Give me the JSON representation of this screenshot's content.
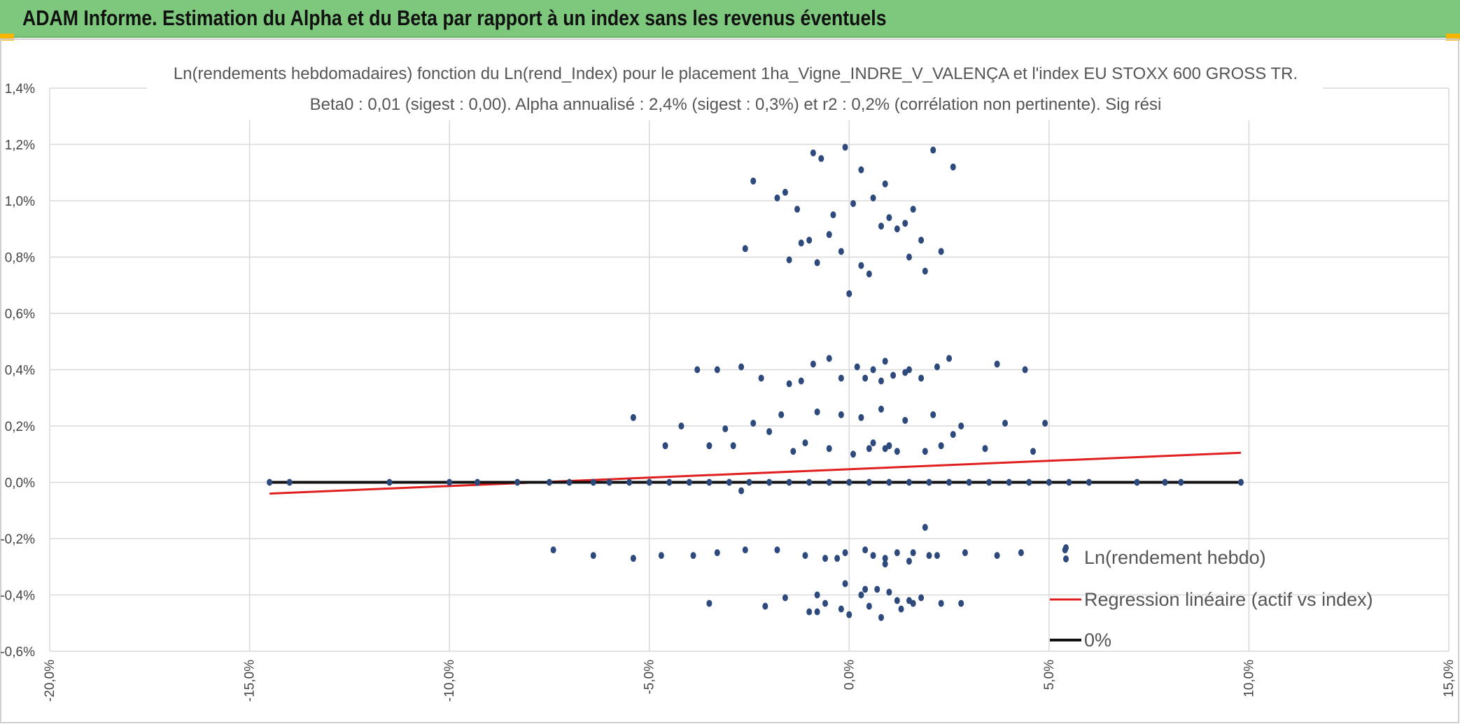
{
  "header": {
    "title": "ADAM Informe. Estimation du Alpha et du Beta par rapport à un index sans les revenus éventuels",
    "bg_color": "#7dc87d",
    "corner_color": "#f4b400"
  },
  "chart_data": {
    "type": "scatter",
    "title": "Ln(rendements hebdomadaires) fonction du Ln(rend_Index) pour le placement 1ha_Vigne_INDRE_V_VALENÇA et l'index EU STOXX 600 GROSS TR.",
    "subtitle": "Beta0 : 0,01 (sigest : 0,00). Alpha annualisé : 2,4% (sigest : 0,3%) et r2 : 0,2% (corrélation non pertinente). Sig rési",
    "xlabel": "",
    "ylabel": "",
    "xlim": [
      -20,
      15
    ],
    "ylim": [
      -0.6,
      1.4
    ],
    "x_ticks": [
      -20,
      -15,
      -10,
      -5,
      0,
      5,
      10,
      15
    ],
    "y_ticks": [
      -0.6,
      -0.4,
      -0.2,
      0.0,
      0.2,
      0.4,
      0.6,
      0.8,
      1.0,
      1.2,
      1.4
    ],
    "x_tick_labels": [
      "-20,0%",
      "-15,0%",
      "-10,0%",
      "-5,0%",
      "0,0%",
      "5,0%",
      "10,0%",
      "15,0%"
    ],
    "y_tick_labels": [
      "-0,6%",
      "-0,4%",
      "-0,2%",
      "0,0%",
      "0,2%",
      "0,4%",
      "0,6%",
      "0,8%",
      "1,0%",
      "1,2%",
      "1,4%"
    ],
    "grid": true,
    "legend_position": "bottom-right",
    "series": [
      {
        "name": "Ln(rendement hebdo)",
        "kind": "points",
        "color": "#2e4a7d",
        "x": [
          -14.5,
          -14,
          -11.5,
          -10,
          -9.3,
          -8.3,
          -7.5,
          -7,
          -6.4,
          -6,
          -5.5,
          -5,
          -4.5,
          -4,
          -3.5,
          -3,
          -2.5,
          -2,
          -1.5,
          -1,
          -0.5,
          0,
          0.5,
          1,
          1.5,
          2,
          2.5,
          3,
          3.5,
          4,
          4.5,
          5,
          5.5,
          6,
          7.2,
          7.9,
          8.3,
          9.8,
          -2.4,
          -1.6,
          -1.3,
          -0.9,
          -0.7,
          -0.1,
          0.3,
          -1.8,
          0.9,
          2.1,
          2.6,
          1.4,
          0.6,
          -1.2,
          0.1,
          1.6,
          -0.5,
          -2.6,
          1.9,
          0.5,
          -0.8,
          1.2,
          -0.2,
          0.8,
          2.3,
          -1.0,
          1.5,
          -0.4,
          0.3,
          1.0,
          -1.5,
          1.8,
          0.0,
          -3.8,
          -3.3,
          -2.7,
          -1.5,
          -0.9,
          -0.5,
          0.2,
          0.6,
          1.1,
          1.8,
          2.5,
          3.7,
          4.4,
          -0.2,
          0.9,
          1.4,
          -1.2,
          0.4,
          2.2,
          -2.2,
          0.8,
          1.5,
          -5.4,
          -4.2,
          -3.5,
          -2.4,
          -1.7,
          -0.8,
          -0.2,
          0.3,
          0.8,
          1.4,
          2.1,
          2.8,
          3.9,
          4.9,
          -3.1,
          -1.1,
          0.5,
          1.0,
          1.9,
          2.6,
          -0.5,
          0.6,
          1.2,
          -2.0,
          0.1,
          -4.6,
          -2.9,
          -1.4,
          0.9,
          2.3,
          3.4,
          4.6,
          -7.4,
          -6.4,
          -5.4,
          -4.7,
          -3.9,
          -3.3,
          -2.6,
          -1.8,
          -1.1,
          -0.6,
          -0.1,
          0.4,
          0.9,
          1.6,
          2.2,
          2.9,
          3.7,
          4.3,
          5.4,
          -0.3,
          0.6,
          1.2,
          2.0,
          -3.5,
          -2.1,
          -1.6,
          -1.0,
          -0.6,
          -0.2,
          0.3,
          0.7,
          1.2,
          1.8,
          2.3,
          2.8,
          0.0,
          0.5,
          1.0,
          -0.8,
          1.5,
          -0.1,
          0.8,
          1.3,
          1.9,
          -0.8,
          0.4,
          1.6,
          -2.7,
          0.9,
          1.5
        ],
        "y": [
          0,
          0,
          0,
          0,
          0,
          0,
          0,
          0,
          0,
          0,
          0,
          0,
          0,
          0,
          0,
          0,
          0,
          0,
          0,
          0,
          0,
          0,
          0,
          0,
          0,
          0,
          0,
          0,
          0,
          0,
          0,
          0,
          0,
          0,
          0,
          0,
          0,
          0,
          1.07,
          1.03,
          0.97,
          1.17,
          1.15,
          1.19,
          1.11,
          1.01,
          1.06,
          1.18,
          1.12,
          0.92,
          1.01,
          0.85,
          0.99,
          0.97,
          0.88,
          0.83,
          0.75,
          0.74,
          0.78,
          0.9,
          0.82,
          0.91,
          0.82,
          0.86,
          0.8,
          0.95,
          0.77,
          0.94,
          0.79,
          0.86,
          0.67,
          0.4,
          0.4,
          0.41,
          0.35,
          0.42,
          0.44,
          0.41,
          0.4,
          0.38,
          0.37,
          0.44,
          0.42,
          0.4,
          0.37,
          0.43,
          0.39,
          0.36,
          0.37,
          0.41,
          0.37,
          0.36,
          0.4,
          0.23,
          0.2,
          0.13,
          0.21,
          0.24,
          0.25,
          0.24,
          0.23,
          0.26,
          0.22,
          0.24,
          0.2,
          0.21,
          0.21,
          0.19,
          0.14,
          0.12,
          0.13,
          0.11,
          0.17,
          0.12,
          0.14,
          0.11,
          0.18,
          0.1,
          0.13,
          0.13,
          0.11,
          0.12,
          0.13,
          0.12,
          0.11,
          -0.24,
          -0.26,
          -0.27,
          -0.26,
          -0.26,
          -0.25,
          -0.24,
          -0.24,
          -0.26,
          -0.27,
          -0.25,
          -0.24,
          -0.27,
          -0.25,
          -0.26,
          -0.25,
          -0.26,
          -0.25,
          -0.24,
          -0.27,
          -0.26,
          -0.25,
          -0.26,
          -0.43,
          -0.44,
          -0.41,
          -0.46,
          -0.43,
          -0.45,
          -0.4,
          -0.38,
          -0.42,
          -0.41,
          -0.43,
          -0.43,
          -0.47,
          -0.44,
          -0.39,
          -0.46,
          -0.42,
          -0.36,
          -0.48,
          -0.45,
          -0.16,
          -0.4,
          -0.38,
          -0.43,
          -0.03,
          -0.29,
          -0.28
        ]
      },
      {
        "name": "Regression linéaire (actif vs index)",
        "kind": "line",
        "color": "#e02020",
        "x": [
          -14.5,
          9.8
        ],
        "y": [
          -0.04,
          0.105
        ]
      },
      {
        "name": "0%",
        "kind": "line",
        "color": "#111111",
        "x": [
          -14.5,
          9.8
        ],
        "y": [
          0,
          0
        ]
      }
    ]
  }
}
